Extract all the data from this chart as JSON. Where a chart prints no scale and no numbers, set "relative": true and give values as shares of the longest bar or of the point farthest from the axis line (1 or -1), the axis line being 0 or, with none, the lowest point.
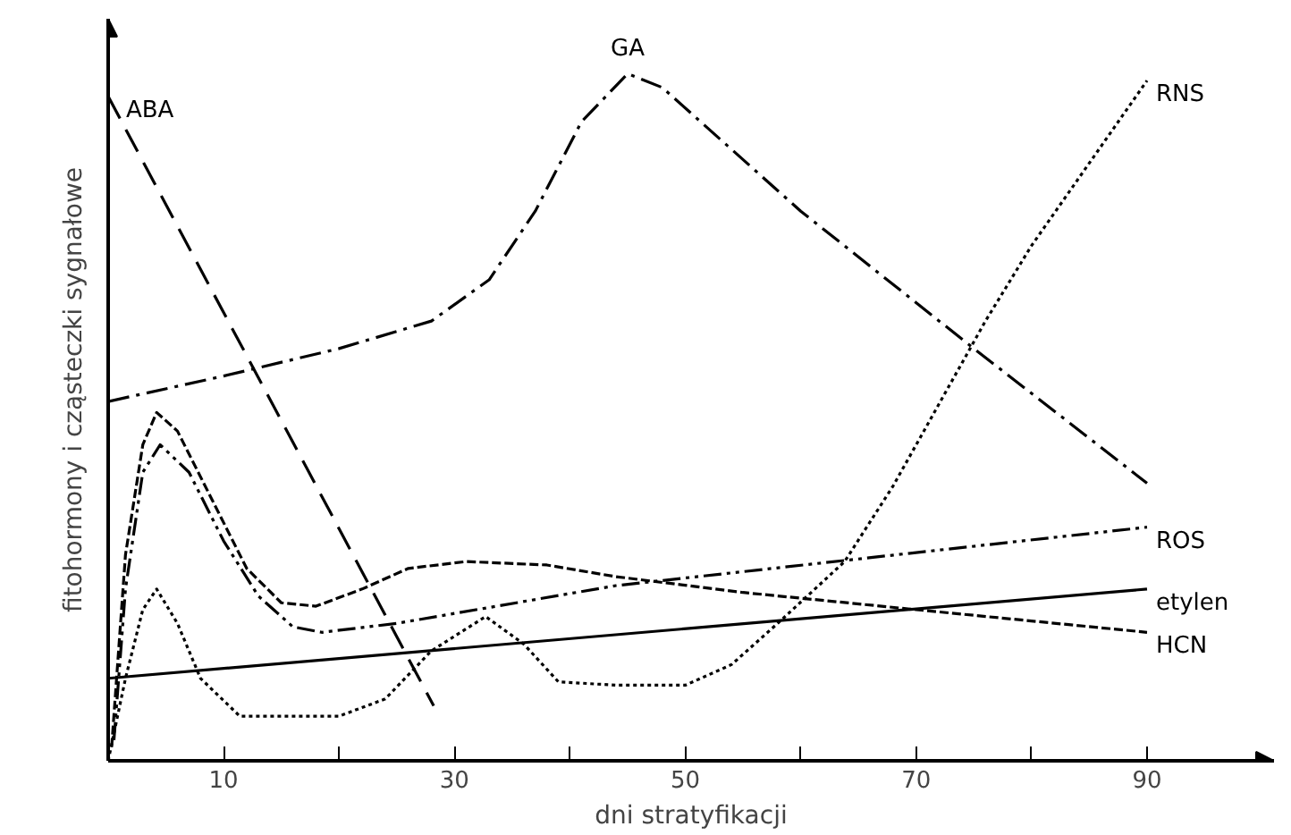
{
  "chart_data": {
    "type": "line",
    "relative": true,
    "xlabel": "dni stratyfikacji",
    "ylabel": "fitohormony i cząsteczki sygnałowe",
    "xlim": [
      0,
      101
    ],
    "xticks": [
      10,
      {
        "value": 20,
        "label": null
      },
      30,
      {
        "value": 40,
        "label": null
      },
      50,
      {
        "value": 60,
        "label": null
      },
      70,
      {
        "value": 80,
        "label": null
      },
      90
    ],
    "grid": false,
    "series": [
      {
        "name": "ABA",
        "color": "#000000",
        "line_style": "longdashed",
        "x": [
          0,
          28.2
        ],
        "values": [
          0.967,
          0.08
        ]
      },
      {
        "name": "GA",
        "color": "#000000",
        "line_style": "dashdot",
        "x": [
          0,
          10,
          20,
          28,
          33,
          37,
          41,
          45,
          48,
          60,
          75,
          90
        ],
        "values": [
          0.523,
          0.56,
          0.6,
          0.64,
          0.7,
          0.8,
          0.93,
          1.0,
          0.98,
          0.8,
          0.6,
          0.404
        ]
      },
      {
        "name": "RNS",
        "color": "#000000",
        "line_style": "dotted",
        "x": [
          0,
          1.5,
          3,
          4.2,
          6,
          8,
          11.4,
          20,
          24,
          28,
          32.7,
          36,
          39,
          44,
          50,
          54,
          58,
          63.8,
          68,
          72,
          76,
          80,
          85,
          90
        ],
        "values": [
          0.0,
          0.12,
          0.22,
          0.25,
          0.2,
          0.12,
          0.065,
          0.065,
          0.09,
          0.16,
          0.21,
          0.17,
          0.115,
          0.11,
          0.11,
          0.14,
          0.2,
          0.29,
          0.4,
          0.52,
          0.64,
          0.75,
          0.87,
          0.99
        ]
      },
      {
        "name": "ROS",
        "color": "#000000",
        "line_style": "dashdotdot",
        "x": [
          0.5,
          1.5,
          3,
          4.5,
          7,
          10,
          13,
          16,
          18.5,
          25,
          44,
          90
        ],
        "values": [
          0.03,
          0.25,
          0.42,
          0.46,
          0.42,
          0.32,
          0.24,
          0.195,
          0.187,
          0.2,
          0.255,
          0.34
        ]
      },
      {
        "name": "etylen",
        "color": "#000000",
        "line_style": "solid",
        "x": [
          0,
          90
        ],
        "values": [
          0.12,
          0.25
        ]
      },
      {
        "name": "HCN",
        "color": "#000000",
        "line_style": "dashed",
        "x": [
          0.3,
          1.5,
          3,
          4.2,
          6,
          9,
          12,
          15,
          18,
          22,
          26,
          31,
          38,
          44,
          55,
          70,
          90
        ],
        "values": [
          0.02,
          0.3,
          0.46,
          0.507,
          0.48,
          0.38,
          0.28,
          0.23,
          0.225,
          0.25,
          0.28,
          0.29,
          0.285,
          0.268,
          0.245,
          0.22,
          0.187
        ]
      }
    ]
  }
}
